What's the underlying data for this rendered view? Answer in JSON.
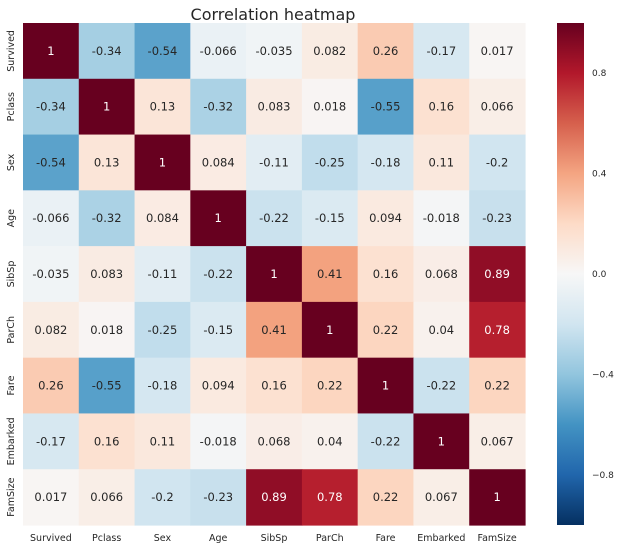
{
  "chart_data": {
    "type": "heatmap",
    "title": "Correlation heatmap",
    "xlabel": "",
    "ylabel": "",
    "categories": [
      "Survived",
      "Pclass",
      "Sex",
      "Age",
      "SibSp",
      "ParCh",
      "Fare",
      "Embarked",
      "FamSize"
    ],
    "matrix": [
      [
        1,
        -0.34,
        -0.54,
        -0.066,
        -0.035,
        0.082,
        0.26,
        -0.17,
        0.017
      ],
      [
        -0.34,
        1,
        0.13,
        -0.32,
        0.083,
        0.018,
        -0.55,
        0.16,
        0.066
      ],
      [
        -0.54,
        0.13,
        1,
        0.084,
        -0.11,
        -0.25,
        -0.18,
        0.11,
        -0.2
      ],
      [
        -0.066,
        -0.32,
        0.084,
        1,
        -0.22,
        -0.15,
        0.094,
        -0.018,
        -0.23
      ],
      [
        -0.035,
        0.083,
        -0.11,
        -0.22,
        1,
        0.41,
        0.16,
        0.068,
        0.89
      ],
      [
        0.082,
        0.018,
        -0.25,
        -0.15,
        0.41,
        1,
        0.22,
        0.04,
        0.78
      ],
      [
        0.26,
        -0.55,
        -0.18,
        0.094,
        0.16,
        0.22,
        1,
        -0.22,
        0.22
      ],
      [
        -0.17,
        0.16,
        0.11,
        -0.018,
        0.068,
        0.04,
        -0.22,
        1,
        0.067
      ],
      [
        0.017,
        0.066,
        -0.2,
        -0.23,
        0.89,
        0.78,
        0.22,
        0.067,
        1
      ]
    ],
    "annotations": [
      [
        "1",
        "-0.34",
        "-0.54",
        "-0.066",
        "-0.035",
        "0.082",
        "0.26",
        "-0.17",
        "0.017"
      ],
      [
        "-0.34",
        "1",
        "0.13",
        "-0.32",
        "0.083",
        "0.018",
        "-0.55",
        "0.16",
        "0.066"
      ],
      [
        "-0.54",
        "0.13",
        "1",
        "0.084",
        "-0.11",
        "-0.25",
        "-0.18",
        "0.11",
        "-0.2"
      ],
      [
        "-0.066",
        "-0.32",
        "0.084",
        "1",
        "-0.22",
        "-0.15",
        "0.094",
        "-0.018",
        "-0.23"
      ],
      [
        "-0.035",
        "0.083",
        "-0.11",
        "-0.22",
        "1",
        "0.41",
        "0.16",
        "0.068",
        "0.89"
      ],
      [
        "0.082",
        "0.018",
        "-0.25",
        "-0.15",
        "0.41",
        "1",
        "0.22",
        "0.04",
        "0.78"
      ],
      [
        "0.26",
        "-0.55",
        "-0.18",
        "0.094",
        "0.16",
        "0.22",
        "1",
        "-0.22",
        "0.22"
      ],
      [
        "-0.17",
        "0.16",
        "0.11",
        "-0.018",
        "0.068",
        "0.04",
        "-0.22",
        "1",
        "0.067"
      ],
      [
        "0.017",
        "0.066",
        "-0.2",
        "-0.23",
        "0.89",
        "0.78",
        "0.22",
        "0.067",
        "1"
      ]
    ],
    "vmin": -1,
    "vmax": 1,
    "colormap": "RdBu_r",
    "colormap_stops": [
      "#053061",
      "#2166ac",
      "#4393c3",
      "#92c5de",
      "#d1e5f0",
      "#f7f7f7",
      "#fddbc7",
      "#f4a582",
      "#d6604d",
      "#b2182b",
      "#67001f"
    ],
    "colorbar": {
      "ticks": [
        0.8,
        0.4,
        0.0,
        -0.4,
        -0.8
      ],
      "tick_labels": [
        "0.8",
        "0.4",
        "0.0",
        "−0.4",
        "−0.8"
      ]
    },
    "legend": "colorbar-right",
    "grid": false,
    "annotation_dark_color": "#262626",
    "annotation_light_color": "#ffffff"
  }
}
